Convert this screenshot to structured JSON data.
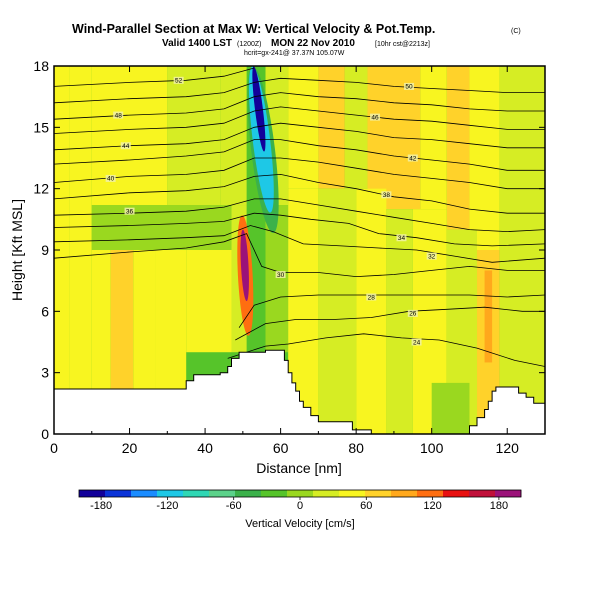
{
  "header": {
    "title": "Wind-Parallel Section at Max W: Vertical Velocity & Pot.Temp.",
    "title_mark": "(C)",
    "valid_prefix": "Valid 1400 LST",
    "valid_utc": "(1200Z)",
    "valid_date": "MON 22 Nov 2010",
    "valid_suffix": "[10hr cst@2213z]",
    "sub_line": "hcrit=gx-241@ 37.37N 105.07W"
  },
  "chart_data": {
    "type": "heatmap",
    "xlabel": "Distance [nm]",
    "ylabel": "Height [Kft MSL]",
    "xlim": [
      0,
      130
    ],
    "ylim": [
      0,
      18
    ],
    "x_ticks": [
      "0",
      "20",
      "40",
      "60",
      "80",
      "100",
      "120"
    ],
    "x_tick_values": [
      0,
      20,
      40,
      60,
      80,
      100,
      120
    ],
    "y_ticks": [
      "0",
      "3",
      "6",
      "9",
      "12",
      "15",
      "18"
    ],
    "y_tick_values": [
      0,
      3,
      6,
      9,
      12,
      15,
      18
    ],
    "grid": false,
    "terrain": [
      [
        0,
        2.2
      ],
      [
        35,
        2.2
      ],
      [
        35,
        2.6
      ],
      [
        37,
        2.6
      ],
      [
        37,
        2.9
      ],
      [
        44,
        2.9
      ],
      [
        44,
        3.0
      ],
      [
        46,
        3.0
      ],
      [
        46,
        3.3
      ],
      [
        47,
        3.3
      ],
      [
        47,
        3.7
      ],
      [
        49,
        3.7
      ],
      [
        49,
        4.0
      ],
      [
        56,
        4.0
      ],
      [
        56,
        4.1
      ],
      [
        61,
        4.1
      ],
      [
        61,
        3.6
      ],
      [
        62,
        3.6
      ],
      [
        62,
        3.0
      ],
      [
        63,
        3.0
      ],
      [
        63,
        2.5
      ],
      [
        64,
        2.5
      ],
      [
        64,
        2.1
      ],
      [
        65,
        2.1
      ],
      [
        65,
        1.6
      ],
      [
        66,
        1.6
      ],
      [
        66,
        1.3
      ],
      [
        68,
        1.3
      ],
      [
        68,
        0.9
      ],
      [
        70,
        0.9
      ],
      [
        70,
        0.6
      ],
      [
        79,
        0.6
      ],
      [
        79,
        0.2
      ],
      [
        84,
        0.2
      ],
      [
        84,
        0.0
      ],
      [
        110,
        0.0
      ],
      [
        110,
        0.4
      ],
      [
        112,
        0.4
      ],
      [
        112,
        0.8
      ],
      [
        114,
        0.8
      ],
      [
        114,
        1.2
      ],
      [
        115,
        1.2
      ],
      [
        115,
        1.6
      ],
      [
        116,
        1.6
      ],
      [
        116,
        2.1
      ],
      [
        117,
        2.1
      ],
      [
        117,
        2.3
      ],
      [
        123,
        2.3
      ],
      [
        123,
        2.0
      ],
      [
        125,
        2.0
      ],
      [
        125,
        1.8
      ],
      [
        127,
        1.8
      ],
      [
        127,
        1.5
      ],
      [
        130,
        1.5
      ]
    ],
    "w_bands": [
      {
        "x0": 0,
        "x1": 4,
        "y0": 0,
        "y1": 18,
        "w": 40
      },
      {
        "x0": 4,
        "x1": 10,
        "y0": 0,
        "y1": 18,
        "w": 50
      },
      {
        "x0": 10,
        "x1": 15,
        "y0": 0,
        "y1": 9,
        "w": 40
      },
      {
        "x0": 15,
        "x1": 21,
        "y0": 0,
        "y1": 9,
        "w": 60
      },
      {
        "x0": 21,
        "x1": 27,
        "y0": 0,
        "y1": 9,
        "w": 40
      },
      {
        "x0": 27,
        "x1": 35,
        "y0": 0,
        "y1": 9,
        "w": 50
      },
      {
        "x0": 35,
        "x1": 47,
        "y0": 4,
        "y1": 9,
        "w": 40
      },
      {
        "x0": 10,
        "x1": 47,
        "y0": 9,
        "y1": 11.2,
        "w": 5
      },
      {
        "x0": 10,
        "x1": 30,
        "y0": 11.2,
        "y1": 18,
        "w": 45
      },
      {
        "x0": 30,
        "x1": 44,
        "y0": 11.2,
        "y1": 18,
        "w": 30
      },
      {
        "x0": 44,
        "x1": 51,
        "y0": 11.2,
        "y1": 18,
        "w": 15
      },
      {
        "x0": 47,
        "x1": 51,
        "y0": 4,
        "y1": 11.2,
        "w": 25
      },
      {
        "x0": 56,
        "x1": 62,
        "y0": 11.2,
        "y1": 18,
        "w": 25
      },
      {
        "x0": 62,
        "x1": 70,
        "y0": 12,
        "y1": 18,
        "w": 45
      },
      {
        "x0": 70,
        "x1": 77,
        "y0": 12,
        "y1": 18,
        "w": 60
      },
      {
        "x0": 77,
        "x1": 83,
        "y0": 12,
        "y1": 18,
        "w": 35
      },
      {
        "x0": 83,
        "x1": 97,
        "y0": 11,
        "y1": 18,
        "w": 70
      },
      {
        "x0": 97,
        "x1": 104,
        "y0": 11,
        "y1": 18,
        "w": 40
      },
      {
        "x0": 104,
        "x1": 110,
        "y0": 10,
        "y1": 18,
        "w": 60
      },
      {
        "x0": 110,
        "x1": 118,
        "y0": 9,
        "y1": 18,
        "w": 45
      },
      {
        "x0": 118,
        "x1": 130,
        "y0": 9,
        "y1": 18,
        "w": 20
      },
      {
        "x0": 56,
        "x1": 62,
        "y0": 4,
        "y1": 11.2,
        "w": 10
      },
      {
        "x0": 62,
        "x1": 70,
        "y0": 0,
        "y1": 12,
        "w": 40
      },
      {
        "x0": 70,
        "x1": 80,
        "y0": 0,
        "y1": 12,
        "w": 25
      },
      {
        "x0": 80,
        "x1": 88,
        "y0": 0,
        "y1": 12,
        "w": 50
      },
      {
        "x0": 88,
        "x1": 95,
        "y0": 0,
        "y1": 11,
        "w": 30
      },
      {
        "x0": 95,
        "x1": 104,
        "y0": 0,
        "y1": 11,
        "w": 45
      },
      {
        "x0": 104,
        "x1": 112,
        "y0": 0,
        "y1": 10,
        "w": 25
      },
      {
        "x0": 112,
        "x1": 118,
        "y0": 0,
        "y1": 9,
        "w": 60
      },
      {
        "x0": 118,
        "x1": 130,
        "y0": 0,
        "y1": 9,
        "w": 30
      },
      {
        "x0": 100,
        "x1": 110,
        "y0": 0,
        "y1": 2.5,
        "w": 0
      },
      {
        "x0": 114,
        "x1": 116,
        "y0": 3.5,
        "y1": 8,
        "w": 90
      }
    ],
    "w_features": [
      {
        "kind": "updraft",
        "x0": 49.5,
        "x1": 51.5,
        "y0": 6.5,
        "y1": 10,
        "w": 180
      },
      {
        "kind": "updraft",
        "x0": 48.7,
        "x1": 52.6,
        "y0": 4.8,
        "y1": 10.7,
        "w": 120
      },
      {
        "kind": "downdraft",
        "x0": 53.2,
        "x1": 55.3,
        "y0": 13.8,
        "y1": 18,
        "w": -180
      },
      {
        "kind": "downdraft",
        "x0": 52.6,
        "x1": 57.2,
        "y0": 10.8,
        "y1": 18,
        "w": -110
      },
      {
        "kind": "downdraft",
        "x0": 52.2,
        "x1": 58.5,
        "y0": 9.8,
        "y1": 18,
        "w": -50
      }
    ],
    "colorbar": {
      "ticks": [
        "-180",
        "-120",
        "-60",
        "0",
        "60",
        "120",
        "180"
      ],
      "tick_values": [
        -180,
        -120,
        -60,
        0,
        60,
        120,
        180
      ],
      "range": [
        -200,
        200
      ],
      "label": "Vertical Velocity [cm/s]",
      "colors": [
        "#12009a",
        "#0a33d8",
        "#1a8cff",
        "#1ec8e6",
        "#2fd7b4",
        "#5cd28a",
        "#3bb14a",
        "#56c42a",
        "#9ad81f",
        "#d6ed24",
        "#f8f520",
        "#ffd22a",
        "#ffa81c",
        "#ff6e10",
        "#e81010",
        "#c0103a",
        "#9b1279"
      ]
    },
    "isentropes": [
      {
        "label": "24",
        "pts": [
          [
            46,
            3.7
          ],
          [
            56,
            4.3
          ],
          [
            62,
            4.4
          ],
          [
            72,
            4.7
          ],
          [
            82,
            4.9
          ],
          [
            92,
            4.7
          ],
          [
            102,
            4.6
          ],
          [
            112,
            4.2
          ],
          [
            122,
            3.6
          ],
          [
            130,
            3.3
          ]
        ],
        "lx": 96,
        "ly": 4.5
      },
      {
        "label": "26",
        "pts": [
          [
            48,
            4.6
          ],
          [
            56,
            5.4
          ],
          [
            64,
            5.6
          ],
          [
            74,
            5.6
          ],
          [
            84,
            5.7
          ],
          [
            94,
            6.0
          ],
          [
            104,
            6.1
          ],
          [
            114,
            6.2
          ],
          [
            124,
            6.0
          ],
          [
            130,
            6.0
          ]
        ],
        "lx": 95,
        "ly": 5.9
      },
      {
        "label": "28",
        "pts": [
          [
            49,
            5.2
          ],
          [
            53,
            6.3
          ],
          [
            60,
            6.7
          ],
          [
            70,
            6.8
          ],
          [
            80,
            6.8
          ],
          [
            90,
            6.8
          ],
          [
            100,
            6.8
          ],
          [
            110,
            6.8
          ],
          [
            120,
            6.7
          ],
          [
            130,
            6.8
          ]
        ],
        "lx": 84,
        "ly": 6.7
      },
      {
        "label": "30",
        "pts": [
          [
            0,
            8.6
          ],
          [
            20,
            8.9
          ],
          [
            35,
            9.1
          ],
          [
            45,
            9.4
          ],
          [
            51,
            9.8
          ],
          [
            55,
            8.2
          ],
          [
            60,
            7.9
          ],
          [
            70,
            7.9
          ],
          [
            80,
            7.7
          ],
          [
            90,
            7.8
          ],
          [
            100,
            8.0
          ],
          [
            110,
            8.2
          ],
          [
            120,
            8.0
          ],
          [
            130,
            8.0
          ]
        ],
        "lx": 60,
        "ly": 7.8
      },
      {
        "label": "32",
        "pts": [
          [
            0,
            9.4
          ],
          [
            20,
            9.5
          ],
          [
            35,
            9.6
          ],
          [
            45,
            9.7
          ],
          [
            52,
            10.2
          ],
          [
            58,
            9.9
          ],
          [
            66,
            9.3
          ],
          [
            76,
            9.2
          ],
          [
            86,
            9.1
          ],
          [
            96,
            9.0
          ],
          [
            106,
            8.7
          ],
          [
            116,
            8.4
          ],
          [
            130,
            8.6
          ]
        ],
        "lx": 100,
        "ly": 8.7
      },
      {
        "label": "34",
        "pts": [
          [
            0,
            10.1
          ],
          [
            20,
            10.2
          ],
          [
            35,
            10.3
          ],
          [
            45,
            10.4
          ],
          [
            53,
            10.8
          ],
          [
            60,
            10.7
          ],
          [
            68,
            10.5
          ],
          [
            78,
            10.3
          ],
          [
            86,
            9.8
          ],
          [
            96,
            9.6
          ],
          [
            106,
            9.3
          ],
          [
            116,
            9.2
          ],
          [
            130,
            9.3
          ]
        ],
        "lx": 92,
        "ly": 9.6
      },
      {
        "label": "36",
        "pts": [
          [
            0,
            10.7
          ],
          [
            20,
            10.8
          ],
          [
            35,
            10.9
          ],
          [
            45,
            11.1
          ],
          [
            53,
            11.5
          ],
          [
            60,
            11.5
          ],
          [
            70,
            11.2
          ],
          [
            80,
            10.9
          ],
          [
            90,
            10.6
          ],
          [
            100,
            10.3
          ],
          [
            110,
            10.0
          ],
          [
            120,
            9.9
          ],
          [
            130,
            10.0
          ]
        ],
        "lx": 20,
        "ly": 10.9
      },
      {
        "label": "38",
        "pts": [
          [
            0,
            11.5
          ],
          [
            20,
            11.8
          ],
          [
            35,
            11.9
          ],
          [
            45,
            12.1
          ],
          [
            53,
            12.6
          ],
          [
            60,
            12.7
          ],
          [
            70,
            12.3
          ],
          [
            80,
            12.0
          ],
          [
            90,
            11.6
          ],
          [
            100,
            11.4
          ],
          [
            110,
            11.0
          ],
          [
            120,
            10.8
          ],
          [
            130,
            10.8
          ]
        ],
        "lx": 88,
        "ly": 11.7
      },
      {
        "label": "40",
        "pts": [
          [
            0,
            12.3
          ],
          [
            20,
            12.6
          ],
          [
            35,
            12.7
          ],
          [
            45,
            12.9
          ],
          [
            53,
            13.5
          ],
          [
            60,
            13.5
          ],
          [
            70,
            13.3
          ],
          [
            80,
            13.0
          ],
          [
            90,
            12.7
          ],
          [
            100,
            12.5
          ],
          [
            110,
            12.3
          ],
          [
            120,
            12.0
          ],
          [
            130,
            12.0
          ]
        ],
        "lx": 15,
        "ly": 12.5
      },
      {
        "label": "42",
        "pts": [
          [
            0,
            13.2
          ],
          [
            20,
            13.4
          ],
          [
            35,
            13.6
          ],
          [
            45,
            13.8
          ],
          [
            53,
            14.4
          ],
          [
            60,
            14.4
          ],
          [
            70,
            14.1
          ],
          [
            80,
            13.9
          ],
          [
            90,
            13.6
          ],
          [
            100,
            13.4
          ],
          [
            110,
            13.2
          ],
          [
            120,
            12.9
          ],
          [
            130,
            12.9
          ]
        ],
        "lx": 95,
        "ly": 13.5
      },
      {
        "label": "44",
        "pts": [
          [
            0,
            13.9
          ],
          [
            20,
            14.1
          ],
          [
            35,
            14.2
          ],
          [
            45,
            14.4
          ],
          [
            53,
            15.0
          ],
          [
            60,
            15.2
          ],
          [
            70,
            15.0
          ],
          [
            80,
            14.8
          ],
          [
            90,
            14.5
          ],
          [
            100,
            14.4
          ],
          [
            110,
            14.2
          ],
          [
            120,
            14.0
          ],
          [
            130,
            14.0
          ]
        ],
        "lx": 19,
        "ly": 14.1
      },
      {
        "label": "46",
        "pts": [
          [
            0,
            14.7
          ],
          [
            20,
            14.9
          ],
          [
            35,
            15.0
          ],
          [
            45,
            15.2
          ],
          [
            53,
            15.8
          ],
          [
            60,
            16.0
          ],
          [
            70,
            15.8
          ],
          [
            80,
            15.6
          ],
          [
            90,
            15.4
          ],
          [
            100,
            15.3
          ],
          [
            110,
            15.1
          ],
          [
            120,
            14.9
          ],
          [
            130,
            14.9
          ]
        ],
        "lx": 85,
        "ly": 15.5
      },
      {
        "label": "48",
        "pts": [
          [
            0,
            15.4
          ],
          [
            20,
            15.6
          ],
          [
            35,
            15.7
          ],
          [
            45,
            15.9
          ],
          [
            53,
            16.5
          ],
          [
            60,
            16.7
          ],
          [
            70,
            16.5
          ],
          [
            80,
            16.4
          ],
          [
            90,
            16.2
          ],
          [
            100,
            16.1
          ],
          [
            110,
            15.9
          ],
          [
            120,
            15.8
          ],
          [
            130,
            15.8
          ]
        ],
        "lx": 17,
        "ly": 15.6
      },
      {
        "label": "50",
        "pts": [
          [
            0,
            16.2
          ],
          [
            20,
            16.4
          ],
          [
            35,
            16.5
          ],
          [
            45,
            16.7
          ],
          [
            53,
            17.2
          ],
          [
            60,
            17.4
          ],
          [
            70,
            17.3
          ],
          [
            80,
            17.2
          ],
          [
            90,
            17.0
          ],
          [
            100,
            16.9
          ],
          [
            110,
            16.8
          ],
          [
            120,
            16.7
          ],
          [
            130,
            16.7
          ]
        ],
        "lx": 94,
        "ly": 17.0
      },
      {
        "label": "52",
        "pts": [
          [
            0,
            17.0
          ],
          [
            20,
            17.2
          ],
          [
            35,
            17.3
          ],
          [
            45,
            17.5
          ],
          [
            53,
            17.9
          ]
        ],
        "lx": 33,
        "ly": 17.3
      }
    ]
  }
}
